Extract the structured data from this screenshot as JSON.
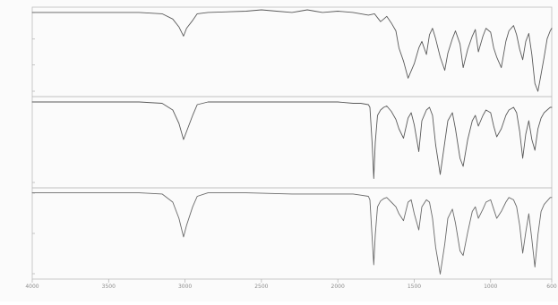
{
  "chart_data": {
    "type": "line",
    "x_reversed": true,
    "xlim": [
      4000,
      600
    ],
    "panels": [
      {
        "legend": "",
        "ylabel": "",
        "ylim": [
          40,
          104
        ],
        "yticks": [
          "",
          "",
          "",
          ""
        ],
        "color": "#5a5a5a",
        "series": {
          "x": [
            4000,
            3300,
            3150,
            3080,
            3040,
            3010,
            2990,
            2950,
            2920,
            2850,
            2600,
            2500,
            2400,
            2300,
            2250,
            2200,
            2150,
            2100,
            2000,
            1900,
            1850,
            1800,
            1760,
            1740,
            1720,
            1700,
            1680,
            1650,
            1620,
            1600,
            1570,
            1540,
            1500,
            1470,
            1450,
            1420,
            1400,
            1380,
            1360,
            1330,
            1300,
            1280,
            1250,
            1230,
            1200,
            1180,
            1150,
            1120,
            1100,
            1080,
            1050,
            1030,
            1000,
            980,
            960,
            930,
            900,
            880,
            850,
            830,
            810,
            790,
            770,
            750,
            730,
            710,
            690,
            670,
            650,
            630,
            610,
            600
          ],
          "y": [
            102,
            102,
            101,
            97,
            91,
            84,
            90,
            96,
            101,
            102,
            103,
            104,
            103,
            102,
            103,
            104,
            103,
            102,
            103,
            102,
            101,
            100,
            101,
            98,
            95,
            97,
            99,
            94,
            88,
            75,
            65,
            52,
            63,
            75,
            80,
            70,
            85,
            90,
            82,
            68,
            58,
            71,
            82,
            88,
            78,
            60,
            74,
            84,
            89,
            72,
            84,
            90,
            87,
            75,
            68,
            60,
            80,
            88,
            92,
            85,
            74,
            66,
            80,
            86,
            70,
            48,
            42,
            55,
            68,
            82,
            88,
            90
          ]
        }
      },
      {
        "legend": "",
        "ylabel": "",
        "ylim": [
          40,
          104
        ],
        "yticks": [
          "",
          ""
        ],
        "color": "#5a5a5a",
        "series": {
          "x": [
            4000,
            3300,
            3150,
            3080,
            3040,
            3010,
            2990,
            2950,
            2920,
            2850,
            2600,
            2300,
            2000,
            1900,
            1850,
            1800,
            1790,
            1775,
            1765,
            1755,
            1740,
            1720,
            1700,
            1680,
            1650,
            1620,
            1600,
            1570,
            1540,
            1520,
            1500,
            1470,
            1450,
            1420,
            1400,
            1380,
            1360,
            1330,
            1300,
            1280,
            1250,
            1230,
            1200,
            1180,
            1150,
            1120,
            1100,
            1080,
            1050,
            1030,
            1000,
            980,
            960,
            930,
            900,
            880,
            850,
            830,
            810,
            790,
            770,
            750,
            730,
            710,
            690,
            670,
            650,
            630,
            610,
            600
          ],
          "y": [
            102,
            102,
            101,
            96,
            86,
            74,
            80,
            92,
            100,
            102,
            102,
            102,
            102,
            101,
            101,
            100,
            98,
            70,
            45,
            72,
            92,
            96,
            98,
            99,
            95,
            89,
            82,
            75,
            90,
            94,
            85,
            65,
            88,
            96,
            98,
            92,
            70,
            48,
            72,
            88,
            94,
            82,
            60,
            54,
            74,
            88,
            92,
            84,
            92,
            96,
            94,
            84,
            76,
            82,
            92,
            96,
            98,
            94,
            80,
            60,
            78,
            88,
            74,
            66,
            82,
            90,
            94,
            96,
            98,
            98
          ]
        }
      },
      {
        "legend": "",
        "ylabel": "",
        "ylim": [
          30,
          104
        ],
        "yticks": [
          "",
          "",
          ""
        ],
        "color": "#6a6a6a",
        "series": {
          "x": [
            4000,
            3300,
            3150,
            3080,
            3040,
            3010,
            2990,
            2950,
            2920,
            2850,
            2600,
            2300,
            2000,
            1900,
            1850,
            1800,
            1790,
            1775,
            1765,
            1755,
            1740,
            1720,
            1700,
            1680,
            1650,
            1620,
            1600,
            1570,
            1540,
            1520,
            1500,
            1470,
            1450,
            1420,
            1400,
            1380,
            1360,
            1330,
            1300,
            1280,
            1250,
            1230,
            1200,
            1180,
            1150,
            1120,
            1100,
            1080,
            1050,
            1030,
            1000,
            980,
            960,
            930,
            900,
            880,
            850,
            830,
            810,
            790,
            770,
            750,
            730,
            710,
            690,
            670,
            650,
            630,
            610,
            600
          ],
          "y": [
            102,
            102,
            101,
            94,
            80,
            64,
            74,
            90,
            99,
            102,
            102,
            101,
            101,
            101,
            100,
            99,
            96,
            62,
            40,
            66,
            90,
            95,
            97,
            98,
            94,
            90,
            84,
            78,
            94,
            96,
            84,
            70,
            90,
            96,
            94,
            80,
            55,
            32,
            58,
            80,
            88,
            76,
            52,
            48,
            68,
            86,
            90,
            80,
            88,
            94,
            96,
            88,
            80,
            86,
            94,
            98,
            96,
            90,
            74,
            50,
            68,
            84,
            62,
            38,
            66,
            86,
            92,
            95,
            98,
            98
          ]
        }
      }
    ],
    "xticks": [
      {
        "value": 4000,
        "label": "4000"
      },
      {
        "value": 3500,
        "label": "3500"
      },
      {
        "value": 3000,
        "label": "3000"
      },
      {
        "value": 2500,
        "label": "2500"
      },
      {
        "value": 2000,
        "label": "2000"
      },
      {
        "value": 1500,
        "label": "1500"
      },
      {
        "value": 1000,
        "label": "1000"
      },
      {
        "value": 600,
        "label": "600"
      }
    ],
    "xlabel": ""
  }
}
